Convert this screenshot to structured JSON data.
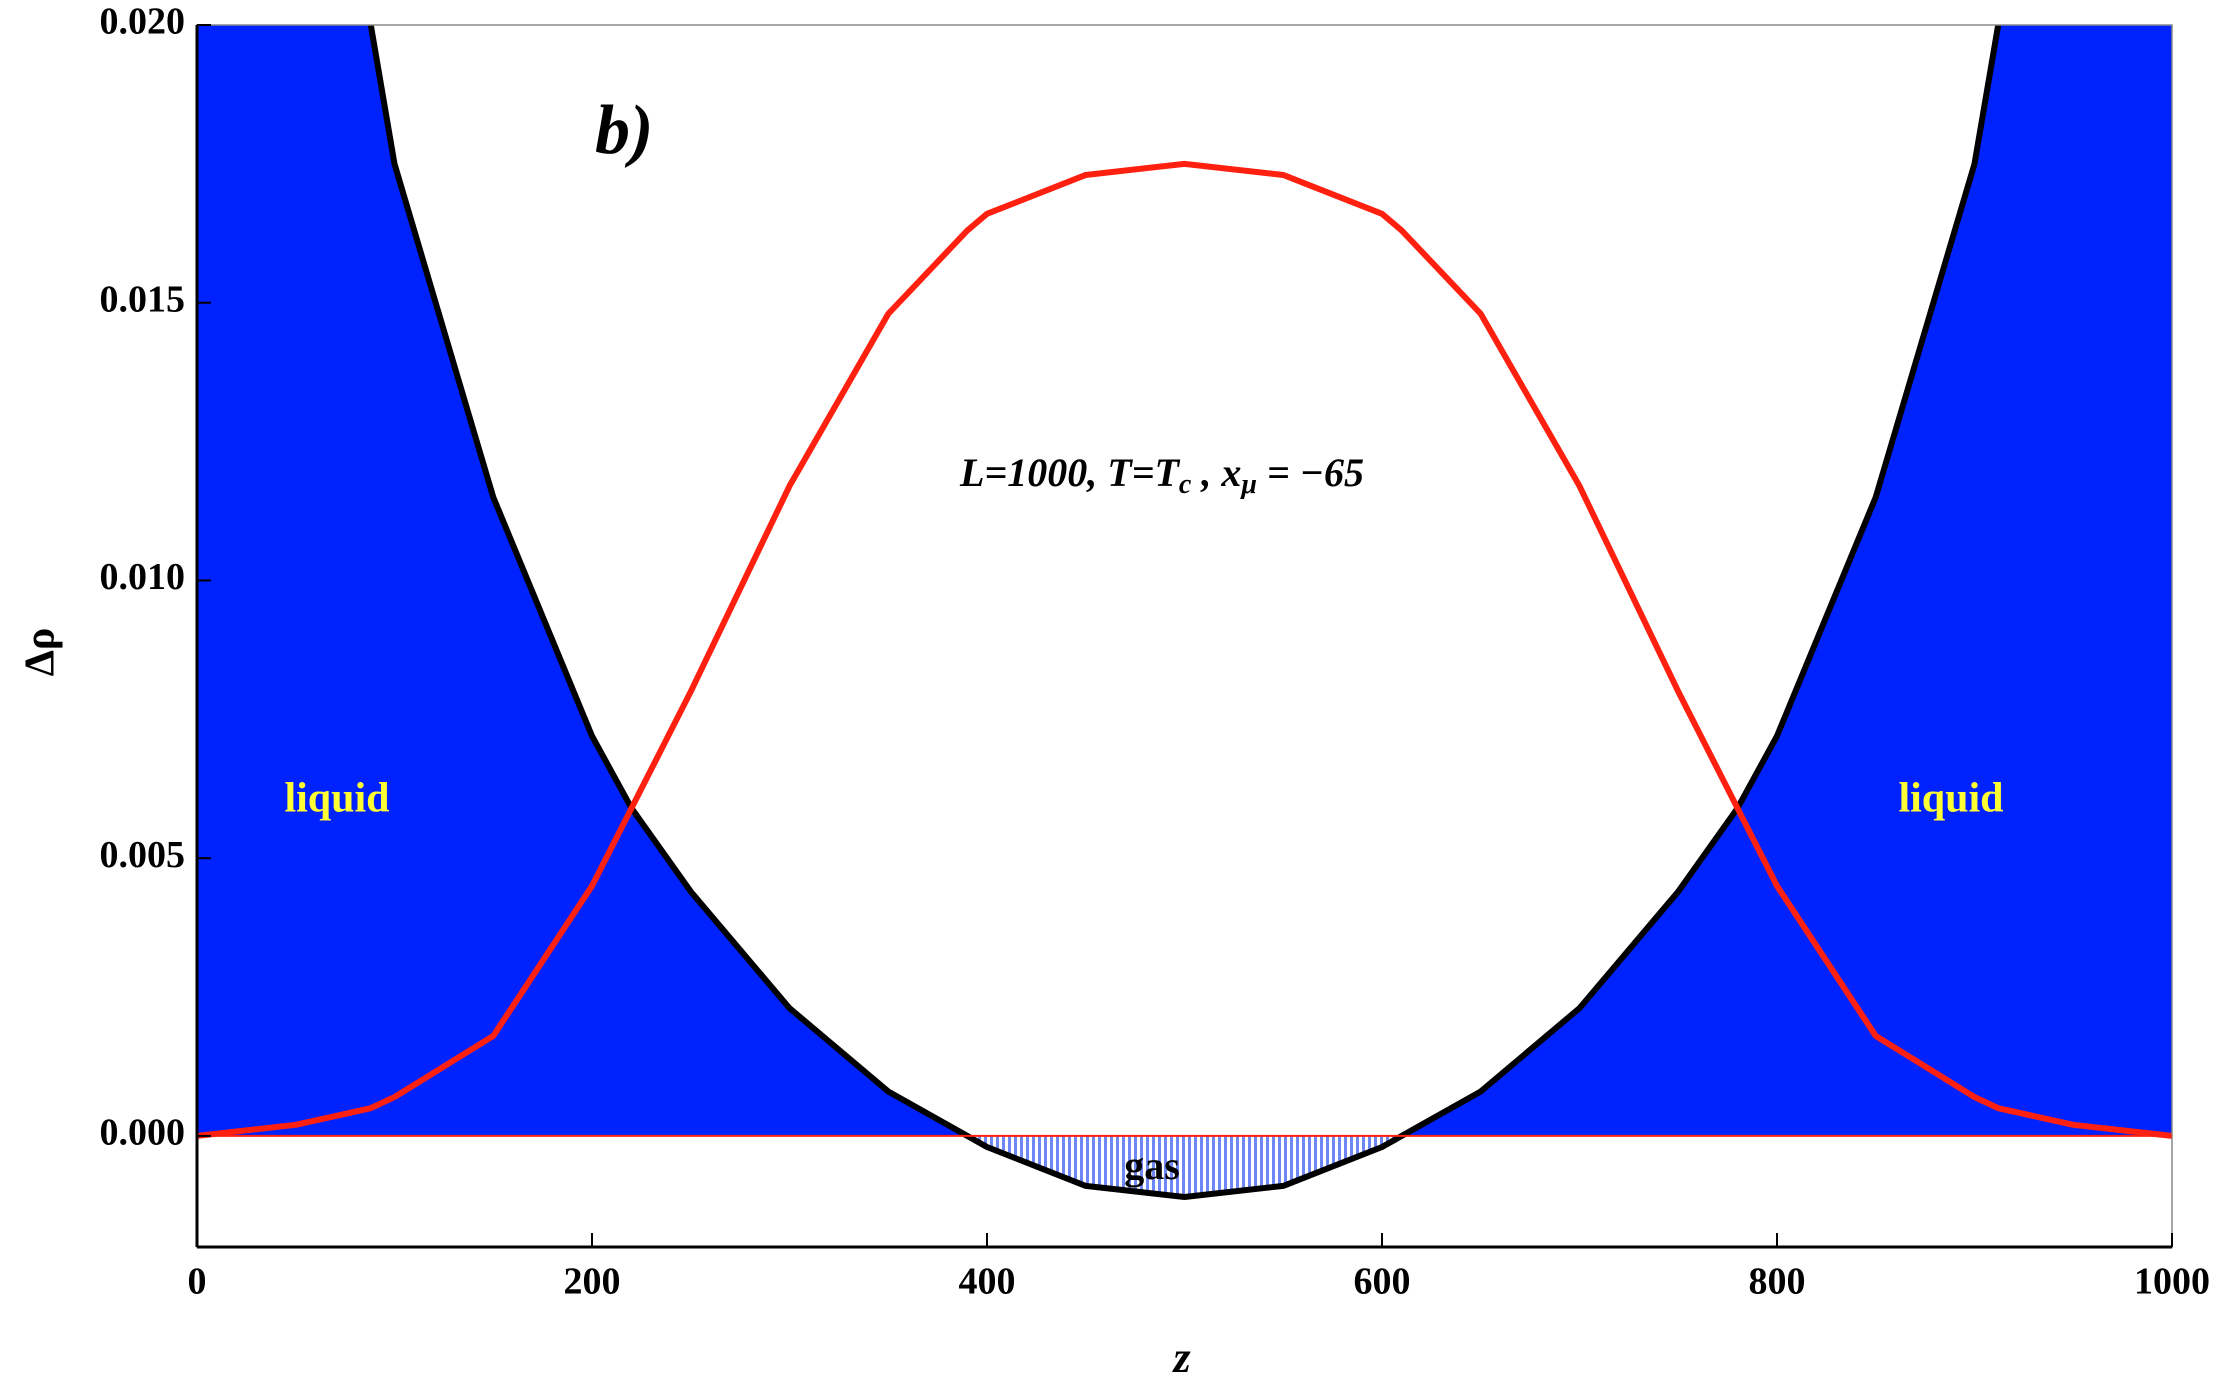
{
  "chart_data": {
    "type": "line",
    "panel_label": "b)",
    "annotation": {
      "parts": [
        "L=1000, T=T",
        "c",
        " ,  x",
        "μ",
        " = −65"
      ]
    },
    "region_labels": [
      "liquid",
      "liquid",
      "gas"
    ],
    "x_label": "z",
    "y_label": "Δρ",
    "x": [
      0,
      50,
      88,
      100,
      150,
      200,
      220,
      250,
      300,
      350,
      390,
      400,
      450,
      500,
      550,
      600,
      610,
      650,
      700,
      750,
      780,
      800,
      850,
      900,
      912,
      950,
      1000
    ],
    "series": [
      {
        "color": "#000000",
        "values": [
          null,
          null,
          0.02,
          0.0175,
          0.0115,
          0.0072,
          0.0059,
          0.0044,
          0.0023,
          0.0008,
          0,
          -0.0002,
          -0.0009,
          -0.0011,
          -0.0009,
          -0.0002,
          0,
          0.0008,
          0.0023,
          0.0044,
          0.0059,
          0.0072,
          0.0115,
          0.0175,
          0.02,
          null,
          null
        ]
      },
      {
        "color": "#ff2010",
        "values": [
          0,
          0.0002,
          0.0005,
          0.0007,
          0.0018,
          0.0045,
          0.0059,
          0.008,
          0.0117,
          0.0148,
          0.0163,
          0.0166,
          0.0173,
          0.0175,
          0.0173,
          0.0166,
          0.0163,
          0.0148,
          0.0117,
          0.008,
          0.0059,
          0.0045,
          0.0018,
          0.0007,
          0.0005,
          0.0002,
          0
        ]
      }
    ],
    "fill_color": "#0022ff",
    "gas_color": "#6f86f5",
    "label_color": "#ffff33",
    "xlim": [
      0,
      1000
    ],
    "ylim": [
      -0.002,
      0.02
    ],
    "xticks": [
      0,
      200,
      400,
      600,
      800,
      1000
    ],
    "yticks": [
      {
        "value": 0,
        "label": "0.000"
      },
      {
        "value": 0.005,
        "label": "0.005"
      },
      {
        "value": 0.01,
        "label": "0.010"
      },
      {
        "value": 0.015,
        "label": "0.015"
      },
      {
        "value": 0.02,
        "label": "0.020"
      }
    ]
  }
}
